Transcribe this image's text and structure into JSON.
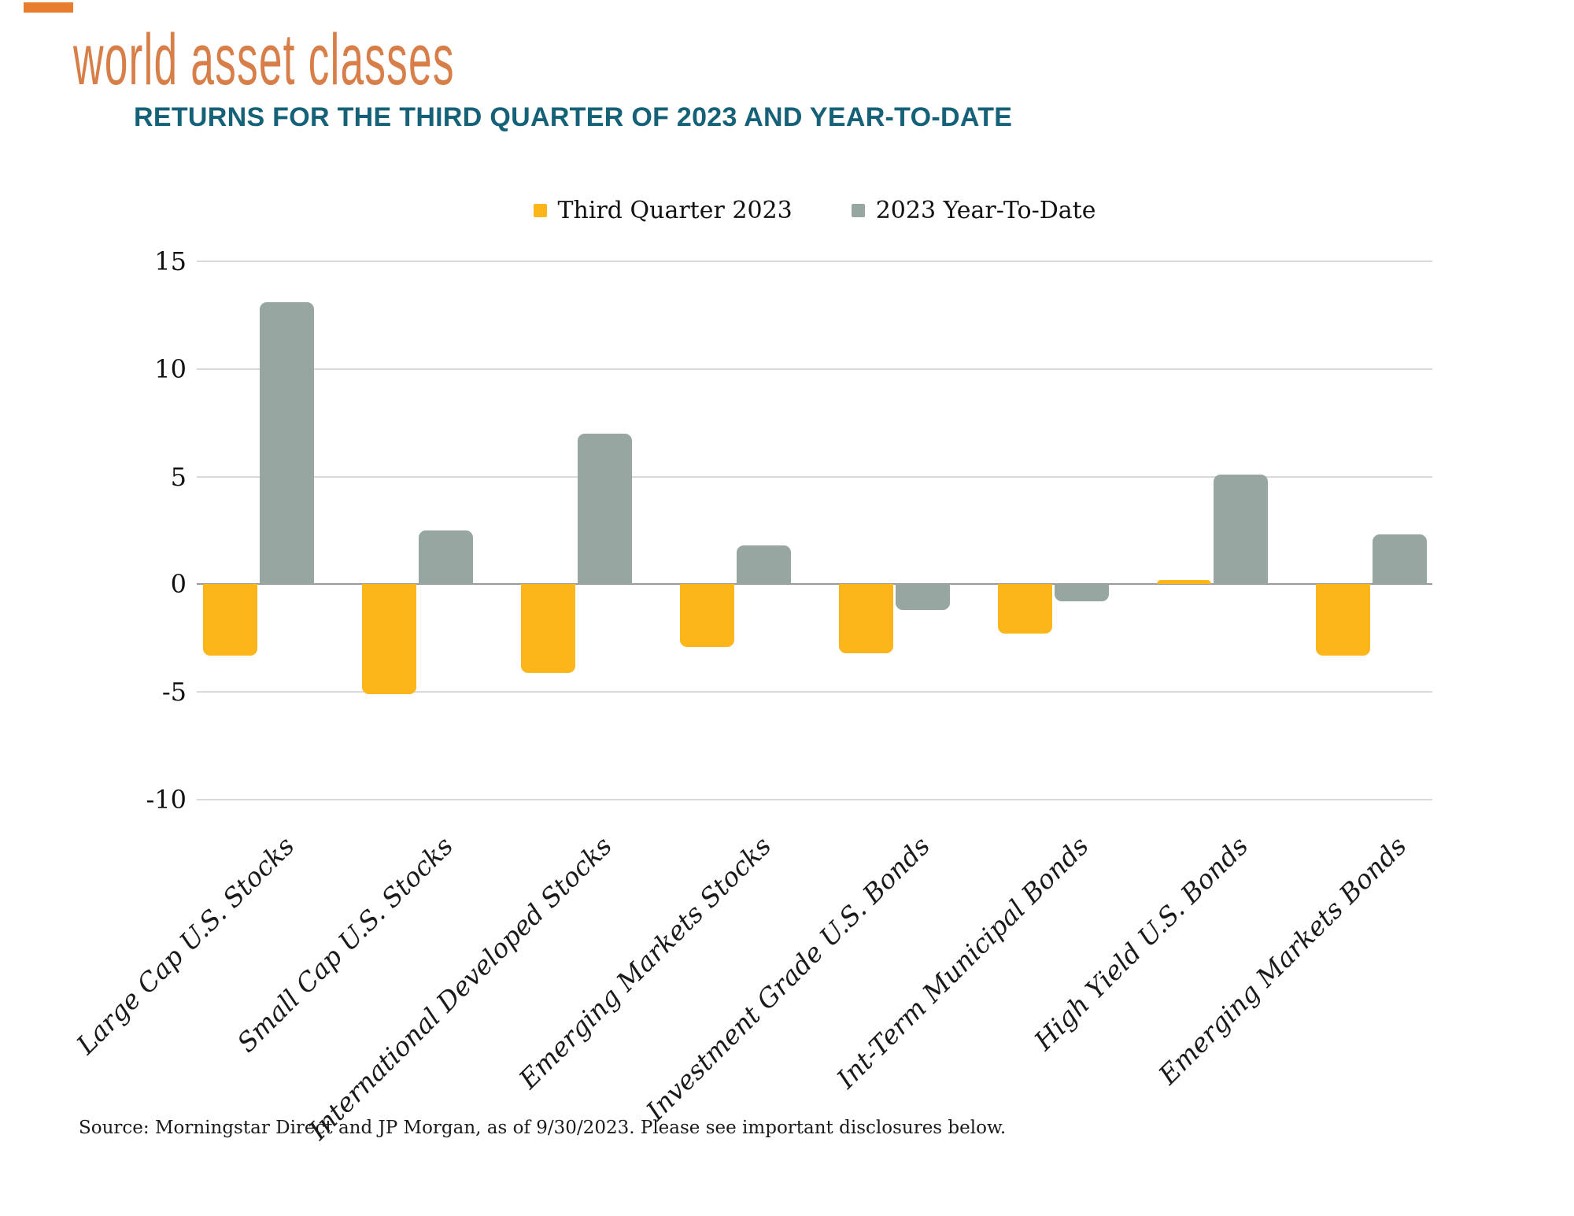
{
  "header": {
    "title": "world asset classes",
    "subtitle": "RETURNS FOR THE THIRD QUARTER OF 2023 AND YEAR-TO-DATE"
  },
  "chart_data": {
    "type": "bar",
    "title": "world asset classes",
    "subtitle": "RETURNS FOR THE THIRD QUARTER OF 2023 AND YEAR-TO-DATE",
    "categories": [
      "Large Cap U.S. Stocks",
      "Small Cap U.S. Stocks",
      "International Developed Stocks",
      "Emerging Markets Stocks",
      "Investment Grade U.S. Bonds",
      "Int-Term Municipal Bonds",
      "High Yield U.S. Bonds",
      "Emerging Markets Bonds"
    ],
    "series": [
      {
        "name": "Third Quarter 2023",
        "color": "#FCB619",
        "values": [
          -3.3,
          -5.1,
          -4.1,
          -2.9,
          -3.2,
          -2.3,
          0.2,
          -3.3
        ]
      },
      {
        "name": "2023 Year-To-Date",
        "color": "#97A6A1",
        "values": [
          13.1,
          2.5,
          7.0,
          1.8,
          -1.2,
          -0.8,
          5.1,
          2.3
        ]
      }
    ],
    "y_ticks": [
      15,
      10,
      5,
      0,
      -5,
      -10
    ],
    "ylim": [
      -10,
      15
    ],
    "grid": true,
    "legend_position": "top-center"
  },
  "source_note": "Source: Morningstar Direct and JP Morgan, as of 9/30/2023. Please see important disclosures below.",
  "colors": {
    "title_orange": "#D87F49",
    "subtitle_teal": "#156177",
    "accent_mark": "#E87D2E",
    "q3_bar": "#FCB619",
    "ytd_bar": "#97A6A1",
    "gridline": "#D9D9D9",
    "zero_line": "#9B9B9B",
    "axis_text": "#111111"
  }
}
